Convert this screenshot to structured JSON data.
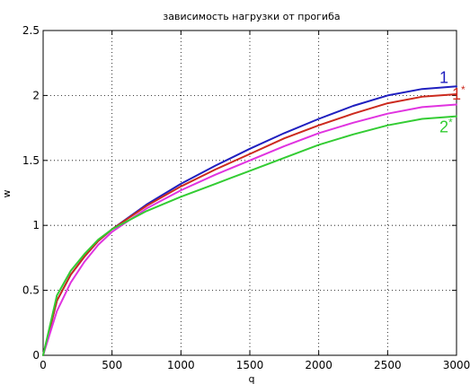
{
  "chart_data": {
    "type": "line",
    "title": "зависимость нагрузки от прогиба",
    "xlabel": "q",
    "ylabel": "w",
    "xlim": [
      0,
      3000
    ],
    "ylim": [
      0,
      2.5
    ],
    "grid": true,
    "x_ticks": [
      "0",
      "500",
      "1000",
      "1500",
      "2000",
      "2500",
      "3000"
    ],
    "y_ticks": [
      "0",
      "0.5",
      "1",
      "1.5",
      "2",
      "2.5"
    ],
    "series": [
      {
        "name": "1",
        "color": "#1f1fbf",
        "x": [
          0,
          100,
          200,
          300,
          400,
          500,
          750,
          1000,
          1250,
          1500,
          1750,
          2000,
          2250,
          2500,
          2750,
          3000
        ],
        "y": [
          0,
          0.42,
          0.62,
          0.76,
          0.88,
          0.97,
          1.16,
          1.32,
          1.46,
          1.59,
          1.71,
          1.82,
          1.92,
          2.0,
          2.05,
          2.07
        ]
      },
      {
        "name": "1*",
        "color": "#cc2a1e",
        "x": [
          0,
          100,
          200,
          300,
          400,
          500,
          750,
          1000,
          1250,
          1500,
          1750,
          2000,
          2250,
          2500,
          2750,
          3000
        ],
        "y": [
          0,
          0.42,
          0.62,
          0.76,
          0.88,
          0.97,
          1.15,
          1.3,
          1.43,
          1.55,
          1.67,
          1.77,
          1.86,
          1.94,
          1.99,
          2.01
        ]
      },
      {
        "name": "",
        "color": "#e033e0",
        "x": [
          0,
          100,
          200,
          300,
          400,
          500,
          750,
          1000,
          1250,
          1500,
          1750,
          2000,
          2250,
          2500,
          2750,
          3000
        ],
        "y": [
          0,
          0.34,
          0.56,
          0.72,
          0.85,
          0.95,
          1.13,
          1.27,
          1.39,
          1.5,
          1.61,
          1.71,
          1.79,
          1.86,
          1.91,
          1.93
        ]
      },
      {
        "name": "2*",
        "color": "#33cc33",
        "x": [
          0,
          100,
          200,
          300,
          400,
          500,
          750,
          1000,
          1250,
          1500,
          1750,
          2000,
          2250,
          2500,
          2750,
          3000
        ],
        "y": [
          0,
          0.46,
          0.65,
          0.78,
          0.89,
          0.97,
          1.11,
          1.22,
          1.32,
          1.42,
          1.52,
          1.62,
          1.7,
          1.77,
          1.82,
          1.84
        ]
      }
    ],
    "curve_labels": [
      {
        "main": "1",
        "sup": "",
        "color": "#1f1fbf"
      },
      {
        "main": "1",
        "sup": "*",
        "color": "#cc2a1e"
      },
      {
        "main": "2",
        "sup": "*",
        "color": "#33cc33"
      }
    ]
  }
}
